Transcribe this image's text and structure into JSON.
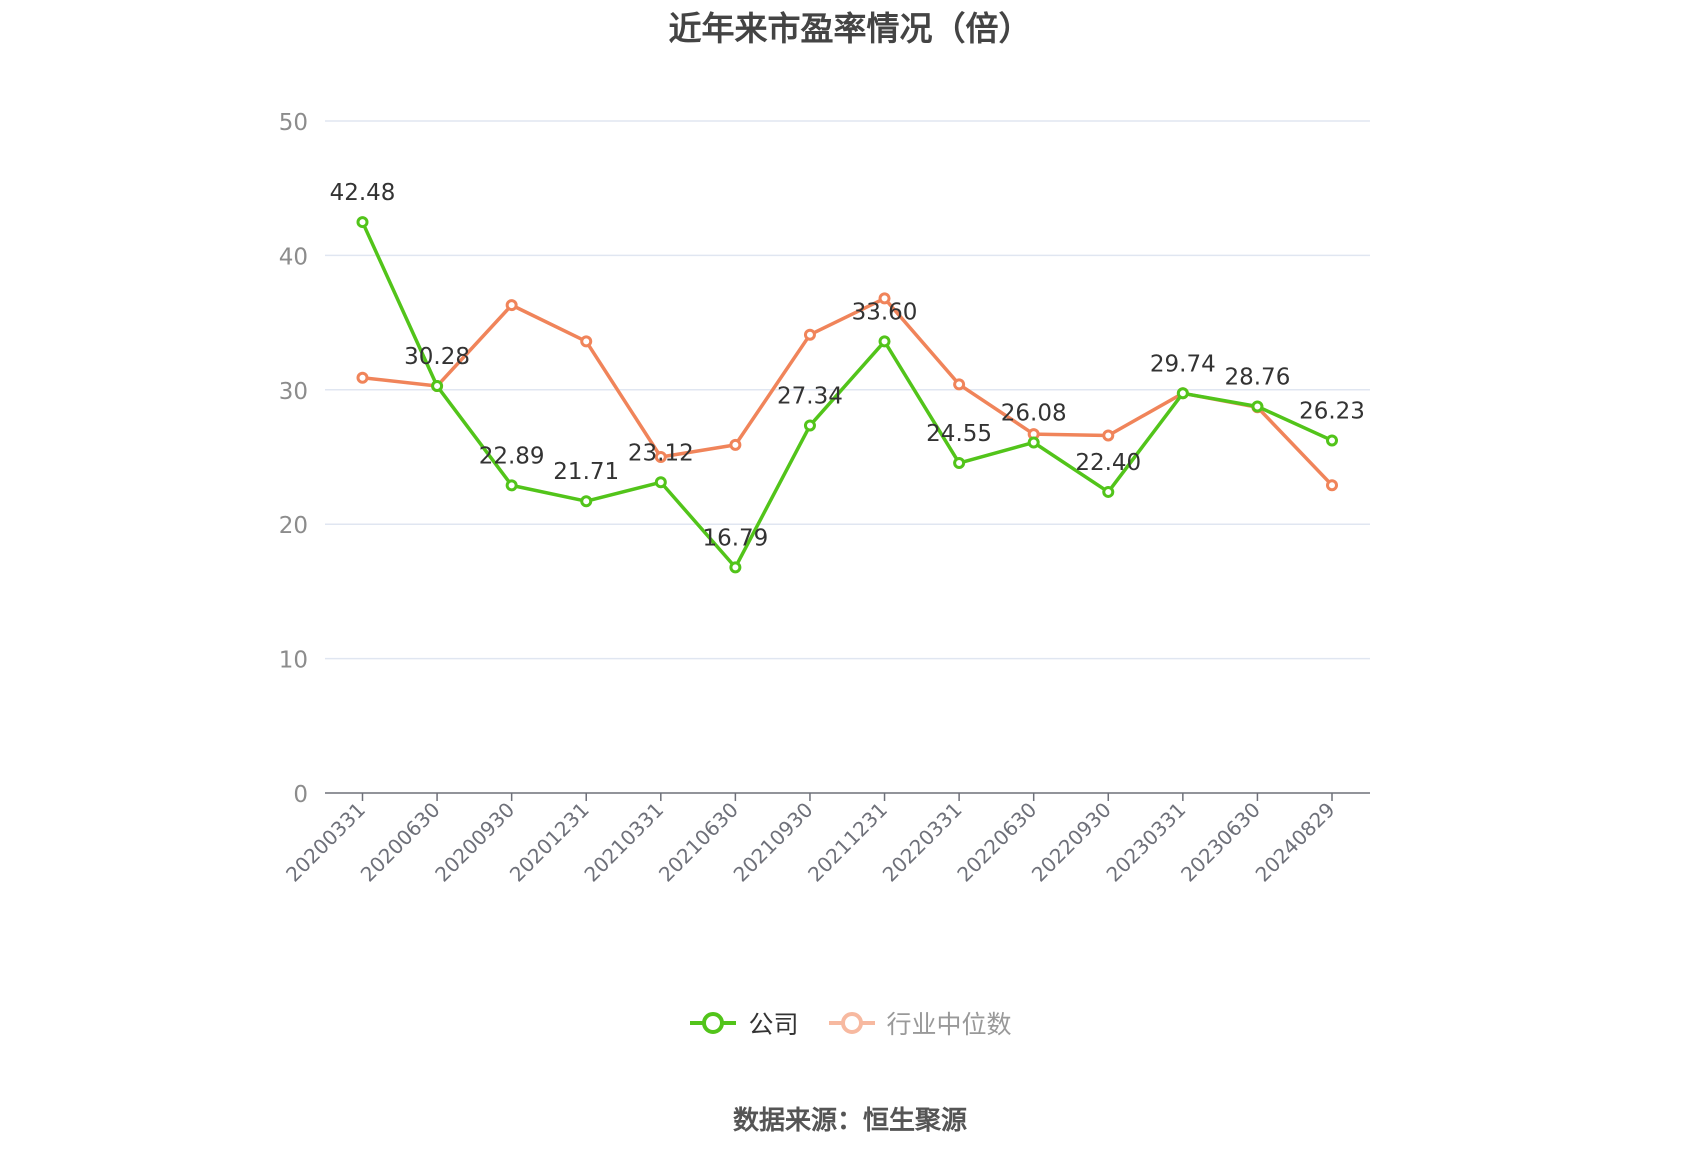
{
  "title": "近年来市盈率情况（倍）",
  "source": "数据来源：恒生聚源",
  "legend": [
    {
      "name": "公司",
      "color": "#52c41a",
      "text_color": "#333333"
    },
    {
      "name": "行业中位数",
      "color": "#f0845a",
      "text_color": "#999999"
    }
  ],
  "chart_data": {
    "type": "line",
    "title": "近年来市盈率情况（倍）",
    "categories": [
      "20200331",
      "20200630",
      "20200930",
      "20201231",
      "20210331",
      "20210630",
      "20210930",
      "20211231",
      "20220331",
      "20220630",
      "20220930",
      "20230331",
      "20230630",
      "20240829"
    ],
    "series": [
      {
        "name": "公司",
        "color": "#52c41a",
        "values": [
          42.48,
          30.28,
          22.89,
          21.71,
          23.12,
          16.79,
          27.34,
          33.6,
          24.55,
          26.08,
          22.4,
          29.74,
          28.76,
          26.23
        ],
        "labels": [
          "42.48",
          "30.28",
          "22.89",
          "21.71",
          "23.12",
          "16.79",
          "27.34",
          "33.60",
          "24.55",
          "26.08",
          "22.40",
          "29.74",
          "28.76",
          "26.23"
        ]
      },
      {
        "name": "行业中位数",
        "color": "#f0845a",
        "values": [
          30.9,
          30.28,
          36.3,
          33.6,
          25.0,
          25.9,
          34.1,
          36.8,
          30.4,
          26.7,
          26.6,
          29.74,
          28.7,
          22.9
        ]
      }
    ],
    "yticks": [
      0,
      10,
      20,
      30,
      40,
      50
    ],
    "ylim": [
      0,
      50
    ],
    "grid": true,
    "legend_position": "bottom"
  }
}
